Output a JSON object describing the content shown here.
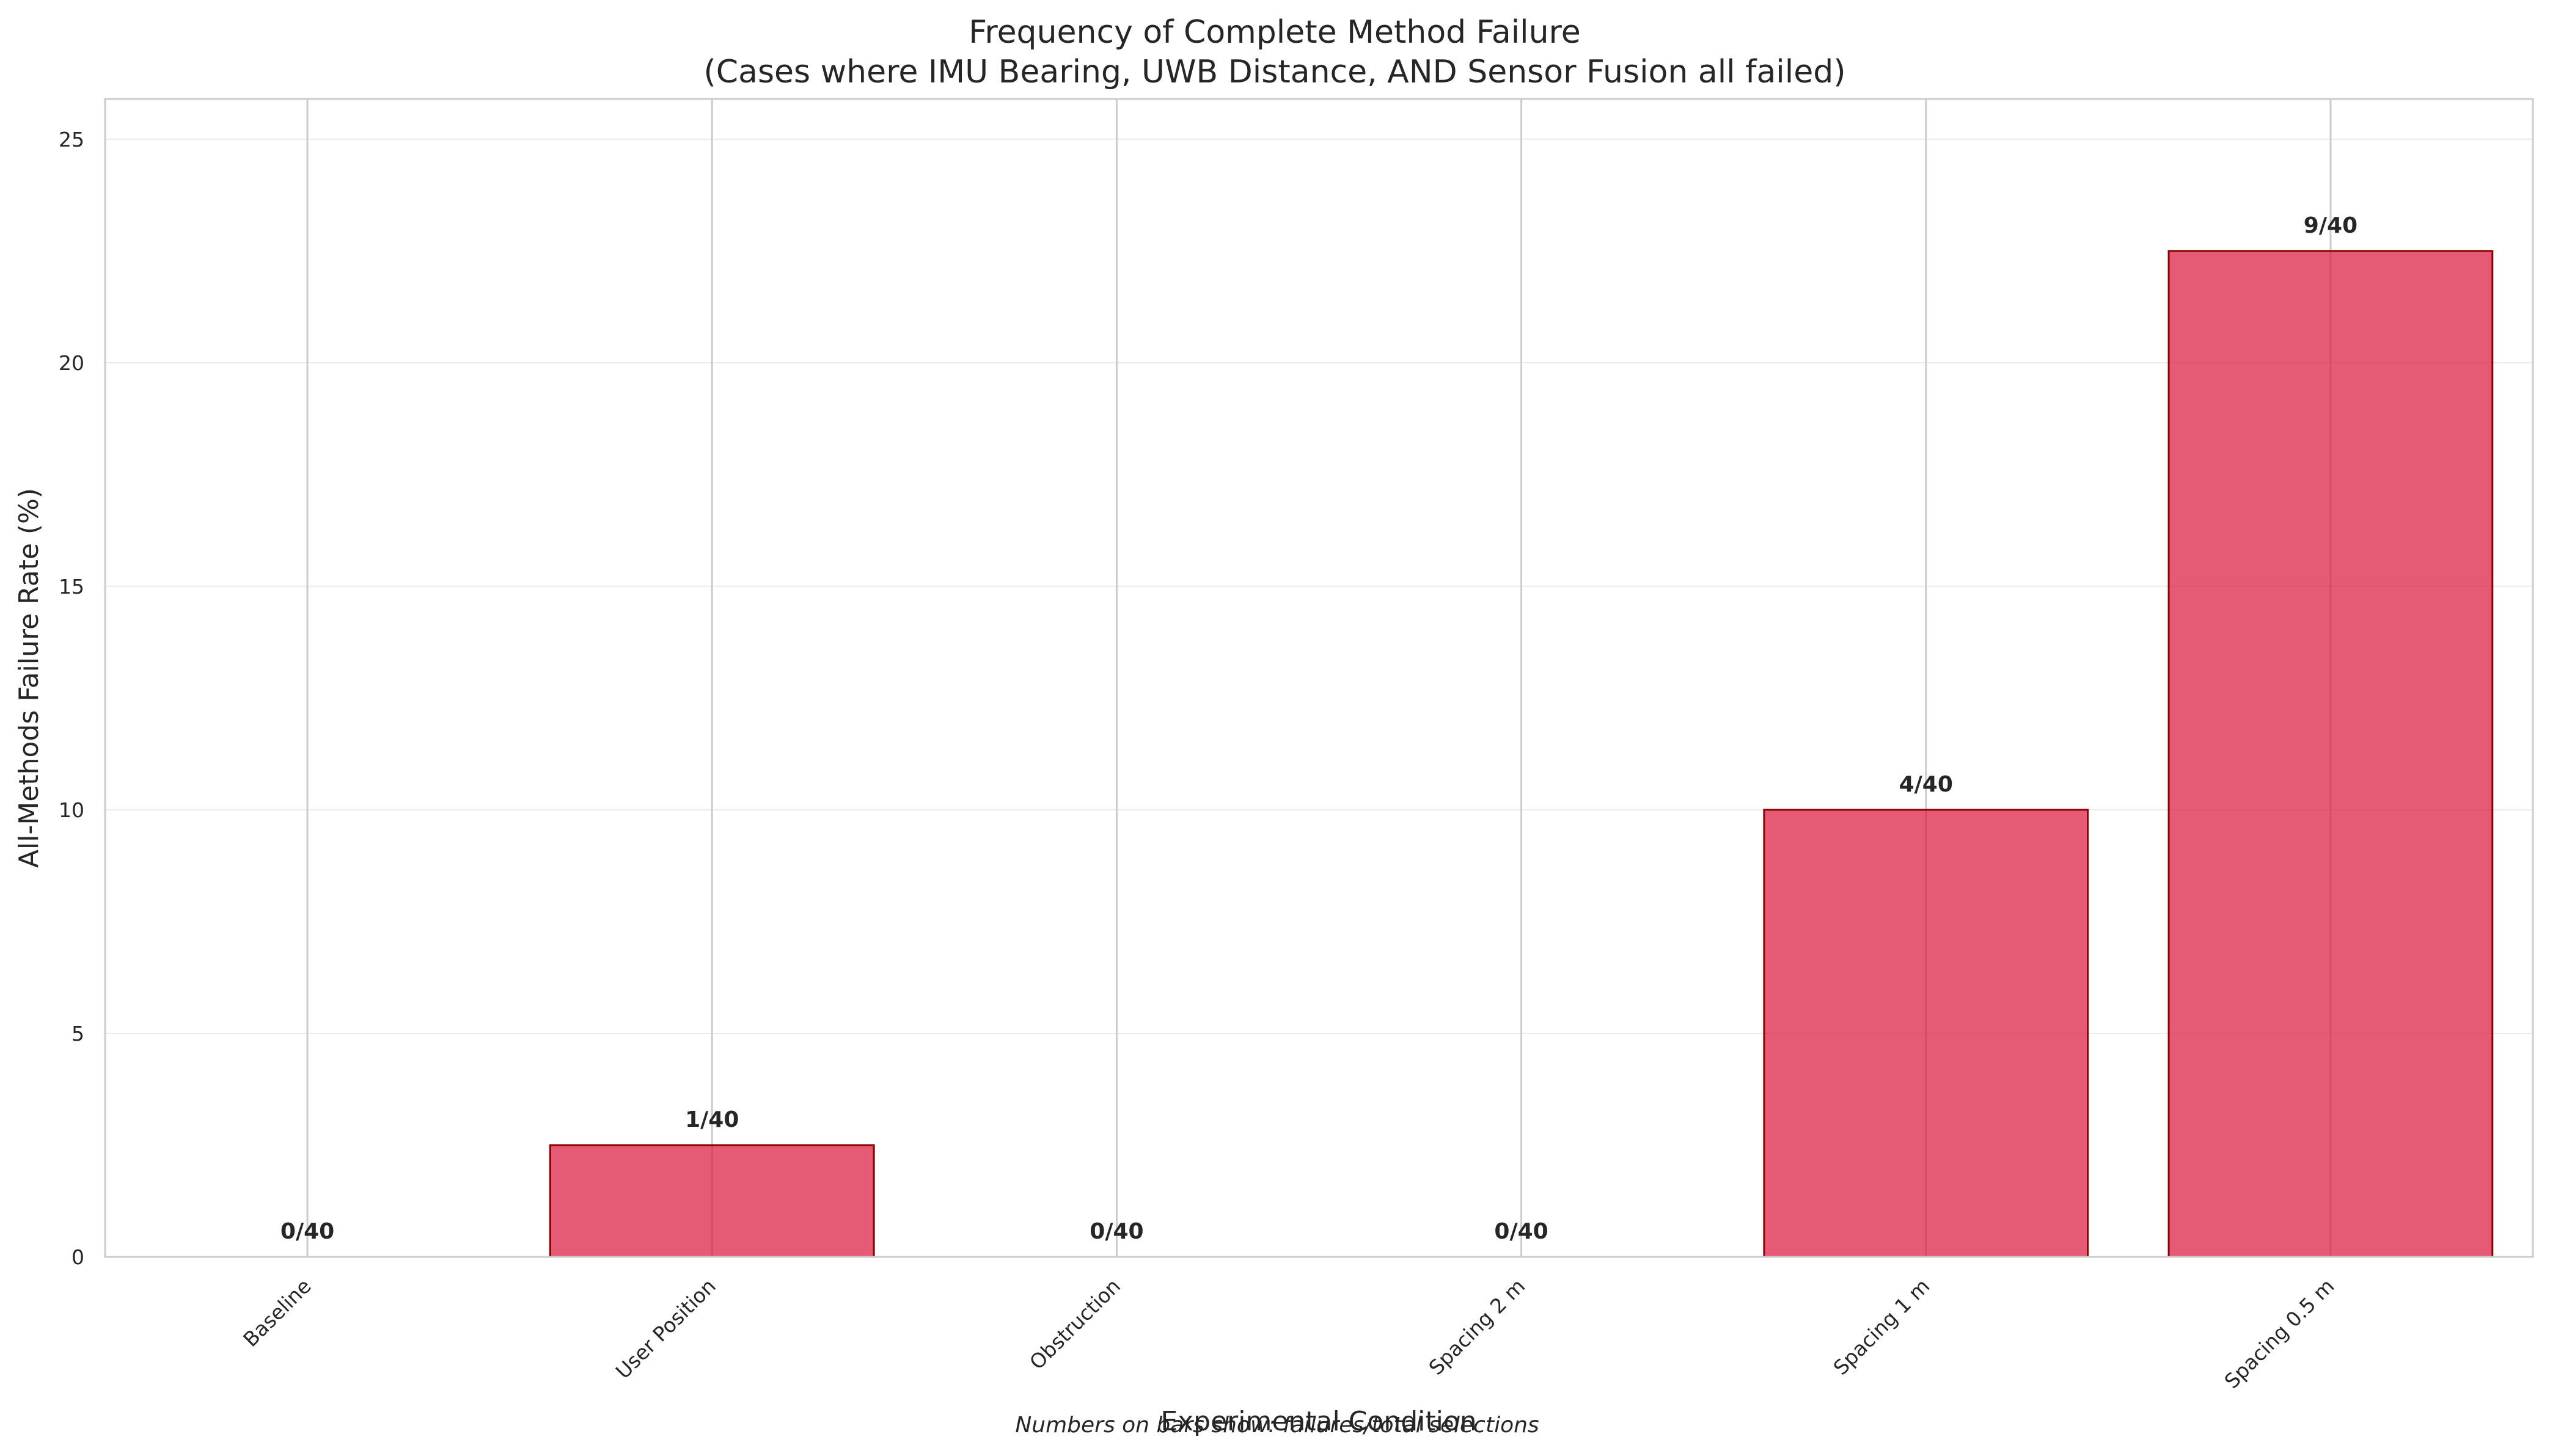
{
  "chart_data": {
    "type": "bar",
    "title": "Frequency of Complete Method Failure",
    "subtitle": "(Cases where IMU Bearing, UWB Distance, AND Sensor Fusion all failed)",
    "xlabel": "Experimental Condition",
    "ylabel": "All-Methods Failure Rate (%)",
    "categories": [
      "Baseline",
      "User Position",
      "Obstruction",
      "Spacing 2 m",
      "Spacing 1 m",
      "Spacing 0.5 m"
    ],
    "values": [
      0,
      2.5,
      0,
      0,
      10,
      22.5
    ],
    "bar_labels": [
      "0/40",
      "1/40",
      "0/40",
      "0/40",
      "4/40",
      "9/40"
    ],
    "ylim": [
      0,
      25.9
    ],
    "yticks": [
      "0",
      "5",
      "10",
      "15",
      "20",
      "25"
    ],
    "ytick_values": [
      0,
      5,
      10,
      15,
      20,
      25
    ],
    "grid": true,
    "bar_color": "#dc143c",
    "bar_edge_color": "#8b0000",
    "note": "Numbers on bars show: failures/total selections"
  }
}
